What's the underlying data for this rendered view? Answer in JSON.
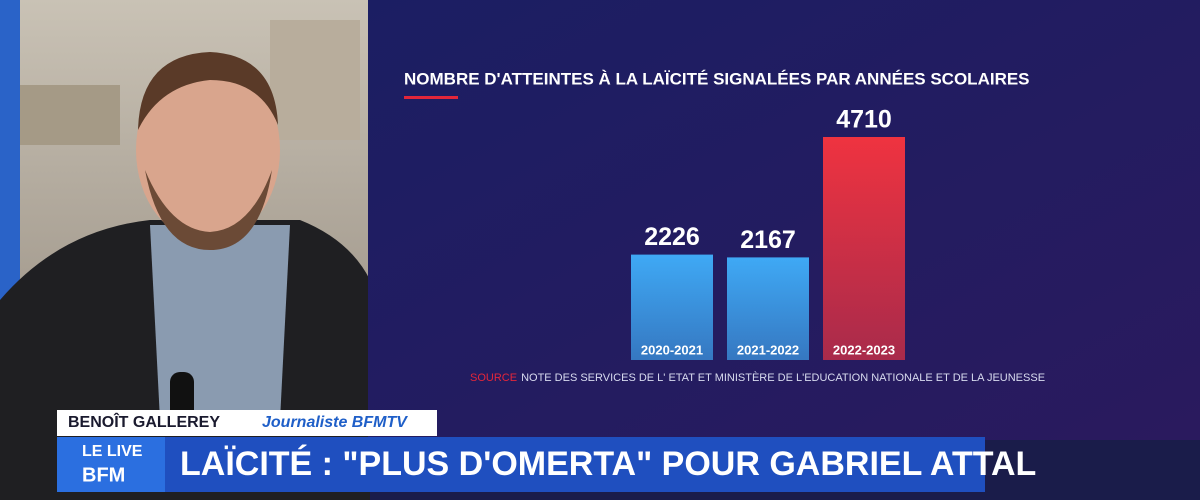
{
  "chart_data": {
    "type": "bar",
    "title": "NOMBRE D'ATTEINTES À LA LAÏCITÉ SIGNALÉES PAR ANNÉES SCOLAIRES",
    "categories": [
      "2020-2021",
      "2021-2022",
      "2022-2023"
    ],
    "values": [
      2226,
      2167,
      4710
    ],
    "colors": [
      "#3fa9f5",
      "#3fa9f5",
      "#ef3340"
    ],
    "source_label": "SOURCE",
    "source": "NOTE DES SERVICES DE L' ETAT ET MINISTÈRE DE L'EDUCATION NATIONALE ET DE LA JEUNESSE"
  },
  "lower_third": {
    "name": "BENOÎT GALLEREY",
    "role": "Journaliste BFMTV",
    "logo_top": "LE LIVE",
    "logo_bottom": "BFM",
    "headline": "LAÏCITÉ : \"PLUS D'OMERTA\" POUR GABRIEL ATTAL"
  }
}
